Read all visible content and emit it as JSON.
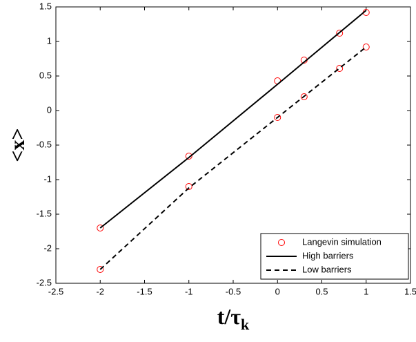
{
  "chart_data": {
    "type": "line",
    "ylabel": "<x>",
    "xlabel": [
      "t/τ",
      "k"
    ],
    "xlim": [
      -2.5,
      1.5
    ],
    "xticks": [
      -2.5,
      -2,
      -1.5,
      -1,
      -0.5,
      0,
      0.5,
      1,
      1.5
    ],
    "ylim": [
      -2.5,
      1.5
    ],
    "yticks": [
      -2.5,
      -2,
      -1.5,
      -1,
      -0.5,
      0,
      0.5,
      1,
      1.5
    ],
    "legend": "lower right",
    "series": [
      {
        "name": "Langevin simulation",
        "style": "marker",
        "color": "#ff0000",
        "x": [
          -2,
          -1,
          0,
          0.3,
          0.7,
          1,
          -2,
          -1,
          0,
          0.3,
          0.7,
          1
        ],
        "values": [
          -1.7,
          -0.66,
          0.43,
          0.73,
          1.12,
          1.42,
          -2.3,
          -1.1,
          -0.1,
          0.2,
          0.61,
          0.92
        ]
      },
      {
        "name": "High barriers",
        "style": "solid",
        "color": "#000000",
        "x": [
          -2,
          -1,
          0,
          1
        ],
        "values": [
          -1.7,
          -0.68,
          0.38,
          1.45
        ]
      },
      {
        "name": "Low barriers",
        "style": "dashed",
        "color": "#000000",
        "x": [
          -2,
          -1,
          0,
          1
        ],
        "values": [
          -2.3,
          -1.12,
          -0.1,
          0.92
        ]
      }
    ]
  }
}
